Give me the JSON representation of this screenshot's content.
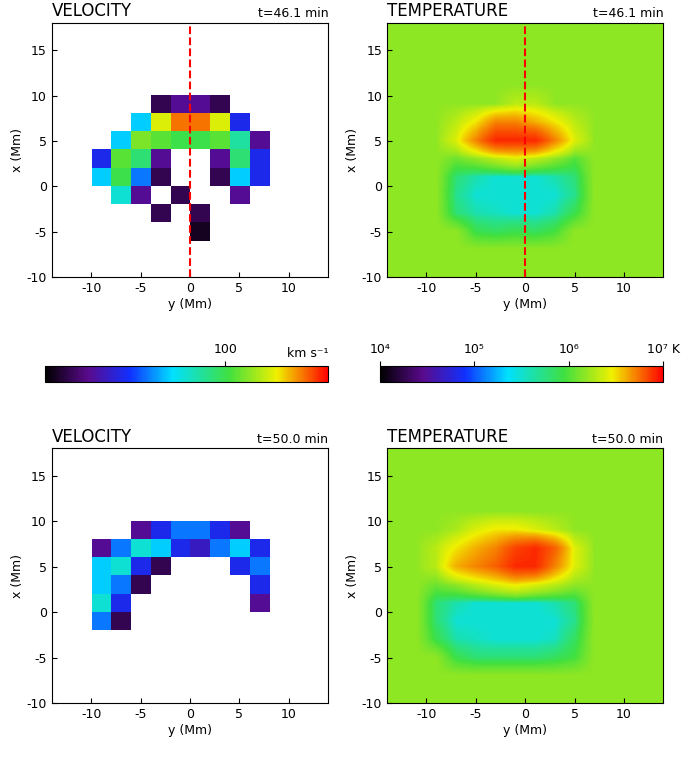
{
  "chart_data": [
    {
      "type": "heatmap",
      "title": "VELOCITY",
      "time": "t=46.1 min",
      "xlabel": "y (Mm)",
      "ylabel": "x (Mm)",
      "xlim": [
        -14,
        14
      ],
      "ylim": [
        -10,
        18
      ],
      "xticks": [
        -10,
        -5,
        0,
        5,
        10
      ],
      "yticks": [
        -10,
        -5,
        0,
        5,
        10,
        15
      ],
      "cut": 0,
      "cells": [
        [
          null,
          null,
          null,
          null,
          null,
          null,
          null,
          null,
          null,
          null,
          null,
          null,
          null,
          null
        ],
        [
          null,
          null,
          null,
          null,
          null,
          null,
          null,
          null,
          null,
          null,
          null,
          null,
          null,
          null
        ],
        [
          null,
          null,
          null,
          null,
          null,
          null,
          null,
          null,
          null,
          null,
          null,
          null,
          null,
          null
        ],
        [
          null,
          null,
          null,
          null,
          null,
          null,
          null,
          null,
          null,
          null,
          null,
          null,
          null,
          null
        ],
        [
          null,
          null,
          null,
          null,
          null,
          25,
          30,
          30,
          25,
          null,
          null,
          null,
          null,
          null
        ],
        [
          null,
          null,
          null,
          null,
          60,
          150,
          200,
          200,
          150,
          40,
          null,
          null,
          null,
          null
        ],
        [
          null,
          null,
          null,
          60,
          120,
          110,
          100,
          100,
          110,
          80,
          30,
          null,
          null,
          null
        ],
        [
          null,
          null,
          40,
          110,
          90,
          30,
          null,
          null,
          30,
          90,
          40,
          null,
          null,
          null
        ],
        [
          null,
          null,
          60,
          100,
          50,
          25,
          null,
          null,
          25,
          60,
          40,
          null,
          null,
          null
        ],
        [
          null,
          null,
          null,
          70,
          30,
          null,
          25,
          null,
          null,
          30,
          null,
          null,
          null,
          null
        ],
        [
          null,
          null,
          null,
          null,
          null,
          25,
          null,
          25,
          null,
          null,
          null,
          null,
          null,
          null
        ],
        [
          null,
          null,
          null,
          null,
          null,
          null,
          null,
          22,
          null,
          null,
          null,
          null,
          null,
          null
        ],
        [
          null,
          null,
          null,
          null,
          null,
          null,
          null,
          null,
          null,
          null,
          null,
          null,
          null,
          null
        ],
        [
          null,
          null,
          null,
          null,
          null,
          null,
          null,
          null,
          null,
          null,
          null,
          null,
          null,
          null
        ]
      ]
    },
    {
      "type": "heatmap",
      "title": "TEMPERATURE",
      "time": "t=46.1 min",
      "xlabel": "y (Mm)",
      "ylabel": "x (Mm)",
      "xlim": [
        -14,
        14
      ],
      "ylim": [
        -10,
        18
      ],
      "xticks": [
        -10,
        -5,
        0,
        5,
        10
      ],
      "yticks": [
        -10,
        -5,
        0,
        5,
        10,
        15
      ],
      "cut": 0,
      "cells": [
        [
          1500000.0,
          1500000.0,
          1500000.0,
          1500000.0,
          1500000.0,
          1500000.0,
          1500000.0,
          1500000.0,
          1500000.0,
          1500000.0,
          1500000.0,
          1500000.0,
          1500000.0,
          1500000.0
        ],
        [
          1500000.0,
          1500000.0,
          1500000.0,
          1500000.0,
          1500000.0,
          1500000.0,
          1500000.0,
          1500000.0,
          1500000.0,
          1500000.0,
          1500000.0,
          1500000.0,
          1500000.0,
          1500000.0
        ],
        [
          1500000.0,
          1500000.0,
          1500000.0,
          1500000.0,
          1500000.0,
          1500000.0,
          1500000.0,
          1500000.0,
          1500000.0,
          1500000.0,
          1500000.0,
          1500000.0,
          1500000.0,
          1500000.0
        ],
        [
          1500000.0,
          1500000.0,
          1500000.0,
          1500000.0,
          1500000.0,
          1500000.0,
          1500000.0,
          1500000.0,
          1500000.0,
          1500000.0,
          1500000.0,
          1500000.0,
          1500000.0,
          1500000.0
        ],
        [
          1500000.0,
          1500000.0,
          1500000.0,
          1500000.0,
          1500000.0,
          1500000.0,
          2000000.0,
          2000000.0,
          1500000.0,
          1500000.0,
          1500000.0,
          1500000.0,
          1500000.0,
          1500000.0
        ],
        [
          1500000.0,
          1500000.0,
          1500000.0,
          2000000.0,
          3000000.0,
          5000000.0,
          5000000.0,
          4000000.0,
          3000000.0,
          2000000.0,
          1500000.0,
          1500000.0,
          1500000.0,
          1500000.0
        ],
        [
          1500000.0,
          1500000.0,
          1500000.0,
          2500000.0,
          5000000.0,
          8000000.0,
          8000000.0,
          8000000.0,
          5000000.0,
          2500000.0,
          1500000.0,
          1500000.0,
          1500000.0,
          1500000.0
        ],
        [
          1500000.0,
          1500000.0,
          1500000.0,
          1200000.0,
          1500000.0,
          2000000.0,
          2500000.0,
          2000000.0,
          1500000.0,
          1000000.0,
          1500000.0,
          1500000.0,
          1500000.0,
          1500000.0
        ],
        [
          1500000.0,
          1500000.0,
          1500000.0,
          600000.0,
          400000.0,
          300000.0,
          300000.0,
          300000.0,
          400000.0,
          600000.0,
          1500000.0,
          1500000.0,
          1500000.0,
          1500000.0
        ],
        [
          1500000.0,
          1500000.0,
          1500000.0,
          500000.0,
          300000.0,
          300000.0,
          300000.0,
          300000.0,
          300000.0,
          500000.0,
          1500000.0,
          1500000.0,
          1500000.0,
          1500000.0
        ],
        [
          1500000.0,
          1500000.0,
          1500000.0,
          600000.0,
          400000.0,
          350000.0,
          300000.0,
          300000.0,
          400000.0,
          800000.0,
          1500000.0,
          1500000.0,
          1500000.0,
          1500000.0
        ],
        [
          1500000.0,
          1500000.0,
          1500000.0,
          1500000.0,
          800000.0,
          700000.0,
          800000.0,
          700000.0,
          900000.0,
          1500000.0,
          1500000.0,
          1500000.0,
          1500000.0,
          1500000.0
        ],
        [
          1500000.0,
          1500000.0,
          1500000.0,
          1500000.0,
          1500000.0,
          1500000.0,
          1500000.0,
          1500000.0,
          1500000.0,
          1500000.0,
          1500000.0,
          1500000.0,
          1500000.0,
          1500000.0
        ],
        [
          1500000.0,
          1500000.0,
          1500000.0,
          1500000.0,
          1500000.0,
          1500000.0,
          1500000.0,
          1500000.0,
          1500000.0,
          1500000.0,
          1500000.0,
          1500000.0,
          1500000.0,
          1500000.0
        ]
      ]
    },
    {
      "type": "heatmap",
      "title": "VELOCITY",
      "time": "t=50.0 min",
      "xlabel": "y (Mm)",
      "ylabel": "x (Mm)",
      "xlim": [
        -14,
        14
      ],
      "ylim": [
        -10,
        18
      ],
      "xticks": [
        -10,
        -5,
        0,
        5,
        10
      ],
      "yticks": [
        -10,
        -5,
        0,
        5,
        10,
        15
      ],
      "cells": [
        [
          null,
          null,
          null,
          null,
          null,
          null,
          null,
          null,
          null,
          null,
          null,
          null,
          null,
          null
        ],
        [
          null,
          null,
          null,
          null,
          null,
          null,
          null,
          null,
          null,
          null,
          null,
          null,
          null,
          null
        ],
        [
          null,
          null,
          null,
          null,
          null,
          null,
          null,
          null,
          null,
          null,
          null,
          null,
          null,
          null
        ],
        [
          null,
          null,
          null,
          null,
          null,
          null,
          null,
          null,
          null,
          null,
          null,
          null,
          null,
          null
        ],
        [
          null,
          null,
          null,
          null,
          30,
          40,
          50,
          50,
          40,
          30,
          null,
          null,
          null,
          null
        ],
        [
          null,
          null,
          30,
          50,
          70,
          60,
          40,
          35,
          50,
          60,
          40,
          null,
          null,
          null
        ],
        [
          null,
          null,
          60,
          70,
          40,
          25,
          null,
          null,
          null,
          40,
          50,
          null,
          null,
          null
        ],
        [
          null,
          null,
          60,
          50,
          25,
          null,
          null,
          null,
          null,
          null,
          40,
          null,
          null,
          null
        ],
        [
          null,
          null,
          70,
          40,
          null,
          null,
          null,
          null,
          null,
          null,
          30,
          null,
          null,
          null
        ],
        [
          null,
          null,
          50,
          25,
          null,
          null,
          null,
          null,
          null,
          null,
          null,
          null,
          null,
          null
        ],
        [
          null,
          null,
          null,
          null,
          null,
          null,
          null,
          null,
          null,
          null,
          null,
          null,
          null,
          null
        ],
        [
          null,
          null,
          null,
          null,
          null,
          null,
          null,
          null,
          null,
          null,
          null,
          null,
          null,
          null
        ],
        [
          null,
          null,
          null,
          null,
          null,
          null,
          null,
          null,
          null,
          null,
          null,
          null,
          null,
          null
        ],
        [
          null,
          null,
          null,
          null,
          null,
          null,
          null,
          null,
          null,
          null,
          null,
          null,
          null,
          null
        ]
      ]
    },
    {
      "type": "heatmap",
      "title": "TEMPERATURE",
      "time": "t=50.0 min",
      "xlabel": "y (Mm)",
      "ylabel": "x (Mm)",
      "xlim": [
        -14,
        14
      ],
      "ylim": [
        -10,
        18
      ],
      "xticks": [
        -10,
        -5,
        0,
        5,
        10
      ],
      "yticks": [
        -10,
        -5,
        0,
        5,
        10,
        15
      ],
      "cells": [
        [
          1500000.0,
          1500000.0,
          1500000.0,
          1500000.0,
          1500000.0,
          1500000.0,
          1500000.0,
          1500000.0,
          1500000.0,
          1500000.0,
          1500000.0,
          1500000.0,
          1500000.0,
          1500000.0
        ],
        [
          1500000.0,
          1500000.0,
          1500000.0,
          1500000.0,
          1500000.0,
          1500000.0,
          1500000.0,
          1500000.0,
          1500000.0,
          1500000.0,
          1500000.0,
          1500000.0,
          1500000.0,
          1500000.0
        ],
        [
          1500000.0,
          1500000.0,
          1500000.0,
          1500000.0,
          1500000.0,
          1500000.0,
          1500000.0,
          1500000.0,
          1500000.0,
          1500000.0,
          1500000.0,
          1500000.0,
          1500000.0,
          1500000.0
        ],
        [
          1500000.0,
          1500000.0,
          1500000.0,
          1500000.0,
          1500000.0,
          1500000.0,
          1500000.0,
          1500000.0,
          1500000.0,
          1500000.0,
          1500000.0,
          1500000.0,
          1500000.0,
          1500000.0
        ],
        [
          1500000.0,
          1500000.0,
          1500000.0,
          1800000.0,
          2500000.0,
          3000000.0,
          3000000.0,
          2500000.0,
          2000000.0,
          1500000.0,
          1500000.0,
          1500000.0,
          1500000.0,
          1500000.0
        ],
        [
          1500000.0,
          1500000.0,
          2000000.0,
          3000000.0,
          4000000.0,
          5000000.0,
          7000000.0,
          8000000.0,
          6000000.0,
          2500000.0,
          1500000.0,
          1500000.0,
          1500000.0,
          1500000.0
        ],
        [
          1500000.0,
          1500000.0,
          2000000.0,
          4000000.0,
          5000000.0,
          6000000.0,
          8000000.0,
          8000000.0,
          5000000.0,
          2500000.0,
          1500000.0,
          1500000.0,
          1500000.0,
          1500000.0
        ],
        [
          1500000.0,
          1500000.0,
          1200000.0,
          1500000.0,
          2000000.0,
          2500000.0,
          3000000.0,
          2500000.0,
          2000000.0,
          1500000.0,
          1500000.0,
          1500000.0,
          1500000.0,
          1500000.0
        ],
        [
          1500000.0,
          1500000.0,
          600000.0,
          400000.0,
          300000.0,
          300000.0,
          300000.0,
          300000.0,
          400000.0,
          600000.0,
          1500000.0,
          1500000.0,
          1500000.0,
          1500000.0
        ],
        [
          1500000.0,
          1500000.0,
          600000.0,
          300000.0,
          300000.0,
          300000.0,
          300000.0,
          300000.0,
          300000.0,
          500000.0,
          1500000.0,
          1500000.0,
          1500000.0,
          1500000.0
        ],
        [
          1500000.0,
          1500000.0,
          800000.0,
          400000.0,
          350000.0,
          300000.0,
          300000.0,
          300000.0,
          350000.0,
          700000.0,
          1500000.0,
          1500000.0,
          1500000.0,
          1500000.0
        ],
        [
          1500000.0,
          1500000.0,
          1500000.0,
          800000.0,
          600000.0,
          600000.0,
          600000.0,
          600000.0,
          700000.0,
          900000.0,
          1500000.0,
          1500000.0,
          1500000.0,
          1500000.0
        ],
        [
          1500000.0,
          1500000.0,
          1500000.0,
          1500000.0,
          1500000.0,
          1500000.0,
          1500000.0,
          1500000.0,
          1500000.0,
          1500000.0,
          1500000.0,
          1500000.0,
          1500000.0,
          1500000.0
        ],
        [
          1500000.0,
          1500000.0,
          1500000.0,
          1500000.0,
          1500000.0,
          1500000.0,
          1500000.0,
          1500000.0,
          1500000.0,
          1500000.0,
          1500000.0,
          1500000.0,
          1500000.0,
          1500000.0
        ]
      ]
    }
  ],
  "colorbars": [
    {
      "range": [
        20,
        250
      ],
      "log": true,
      "ticks": [
        100
      ],
      "label": "km s⁻¹"
    },
    {
      "range": [
        10000,
        10000000
      ],
      "log": true,
      "ticks": [
        {
          "value": 10000,
          "label": "10⁴"
        },
        {
          "value": 100000,
          "label": "10⁵"
        },
        {
          "value": 1000000,
          "label": "10⁶"
        },
        {
          "value": 10000000,
          "label": "10⁷ K"
        }
      ]
    }
  ]
}
